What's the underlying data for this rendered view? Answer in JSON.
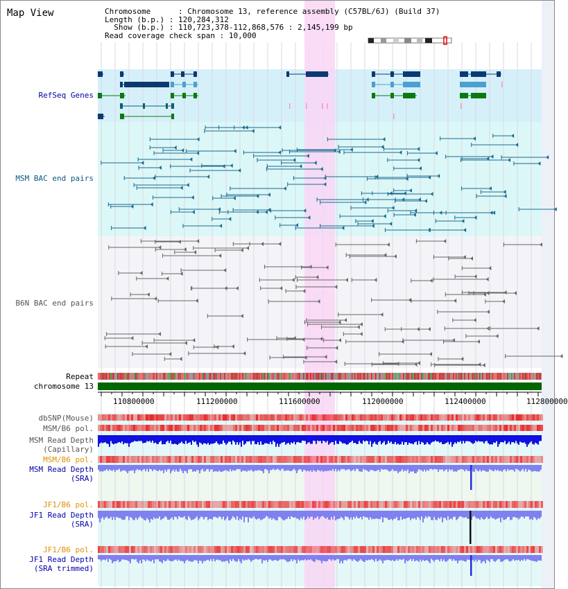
{
  "header": {
    "title": "Map View",
    "chromosome_label": "Chromosome",
    "chromosome_value": "Chromosome 13, reference assembly (C57BL/6J) (Build 37)",
    "length_label": "Length (b.p.)",
    "length_value": "120,284,312",
    "show_label": "Show (b.p.)",
    "show_value": "110,723,378-112,868,576 : 2,145,199 bp",
    "coverage_label": "Read coverage check span",
    "coverage_value": "10,000"
  },
  "tracks": {
    "refseq": "RefSeq Genes",
    "msm_bac": "MSM BAC end pairs",
    "b6n_bac": "B6N BAC end pairs",
    "repeat": "Repeat",
    "chromosome": "chromosome 13",
    "dbsnp": "dbSNP(Mouse)",
    "msm_b6_pol_1": "MSM/B6 pol.",
    "msm_read_depth_cap_1": "MSM Read Depth",
    "msm_read_depth_cap_2": "(Capillary)",
    "msm_b6_pol_2": "MSM/B6 pol.",
    "msm_read_depth_sra_1": "MSM Read Depth",
    "msm_read_depth_sra_2": "(SRA)",
    "jf1_b6_pol_1": "JF1/B6 pol.",
    "jf1_read_depth_1": "JF1 Read Depth",
    "jf1_read_depth_2": "(SRA)",
    "jf1_b6_pol_2": "JF1/B6 pol.",
    "jf1_read_depth_trim_1": "JF1 Read Depth",
    "jf1_read_depth_trim_2": "(SRA trimmed)"
  },
  "axis": {
    "ticks": [
      "110800000",
      "111200000",
      "111600000",
      "112000000",
      "112400000",
      "112800000"
    ]
  },
  "colors": {
    "refseq_bg": "#d6f0fa",
    "msm_bg": "#dcf7f7",
    "b6n_bg": "#f4f4f8",
    "highlight": "#f9d6f4",
    "chromosome": "#006600",
    "depth_blue": "#1010e0",
    "depth_light": "#8080f0"
  }
}
